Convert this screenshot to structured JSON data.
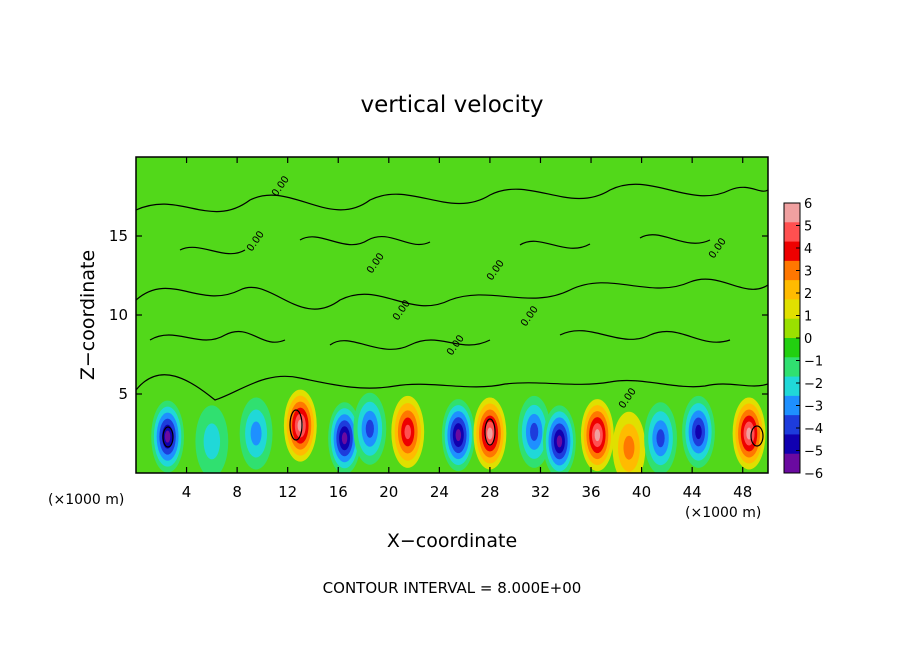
{
  "chart_data": {
    "type": "heatmap",
    "title": "vertical velocity",
    "xlabel": "X−coordinate",
    "ylabel": "Z−coordinate",
    "x_unit_label": "(×1000 m)",
    "y_unit_label": "(×1000 m)",
    "xlim": [
      0,
      50
    ],
    "ylim": [
      0,
      20
    ],
    "x_ticks": [
      4,
      8,
      12,
      16,
      20,
      24,
      28,
      32,
      36,
      40,
      44,
      48
    ],
    "y_ticks": [
      5,
      10,
      15
    ],
    "colorbar": {
      "range": [
        -6,
        6
      ],
      "labels": [
        6,
        5,
        4,
        3,
        2,
        1,
        0,
        -1,
        -2,
        -3,
        -4,
        -5,
        -6
      ],
      "label_texts": [
        "6",
        "5",
        "4",
        "3",
        "2",
        "1",
        "0",
        "−1",
        "−2",
        "−3",
        "−4",
        "−5",
        "−6"
      ],
      "colors": [
        "#f0a0a0",
        "#ff5050",
        "#ee0000",
        "#ff7700",
        "#ffbb00",
        "#e0e000",
        "#9ae000",
        "#22d010",
        "#30e070",
        "#20d8d8",
        "#1e90ff",
        "#1d3cdc",
        "#1000b0",
        "#6a0aa0"
      ]
    },
    "contour_label": "0.00",
    "footer": "CONTOUR INTERVAL = 8.000E+00",
    "cells": [
      {
        "x": 2.5,
        "z": 2.3,
        "w": -6
      },
      {
        "x": 6.0,
        "z": 2.0,
        "w": -1.5
      },
      {
        "x": 9.5,
        "z": 2.5,
        "w": -2.5
      },
      {
        "x": 13.0,
        "z": 3.0,
        "w": 6
      },
      {
        "x": 16.5,
        "z": 2.2,
        "w": -6
      },
      {
        "x": 18.5,
        "z": 2.8,
        "w": -4
      },
      {
        "x": 21.5,
        "z": 2.6,
        "w": 5
      },
      {
        "x": 25.5,
        "z": 2.4,
        "w": -6
      },
      {
        "x": 28.0,
        "z": 2.5,
        "w": 6
      },
      {
        "x": 31.5,
        "z": 2.6,
        "w": -3.5
      },
      {
        "x": 33.5,
        "z": 2.0,
        "w": -6
      },
      {
        "x": 36.5,
        "z": 2.4,
        "w": 5.5
      },
      {
        "x": 39.0,
        "z": 1.6,
        "w": 3
      },
      {
        "x": 41.5,
        "z": 2.2,
        "w": -4
      },
      {
        "x": 44.5,
        "z": 2.6,
        "w": -5
      },
      {
        "x": 48.5,
        "z": 2.5,
        "w": 6
      }
    ]
  }
}
